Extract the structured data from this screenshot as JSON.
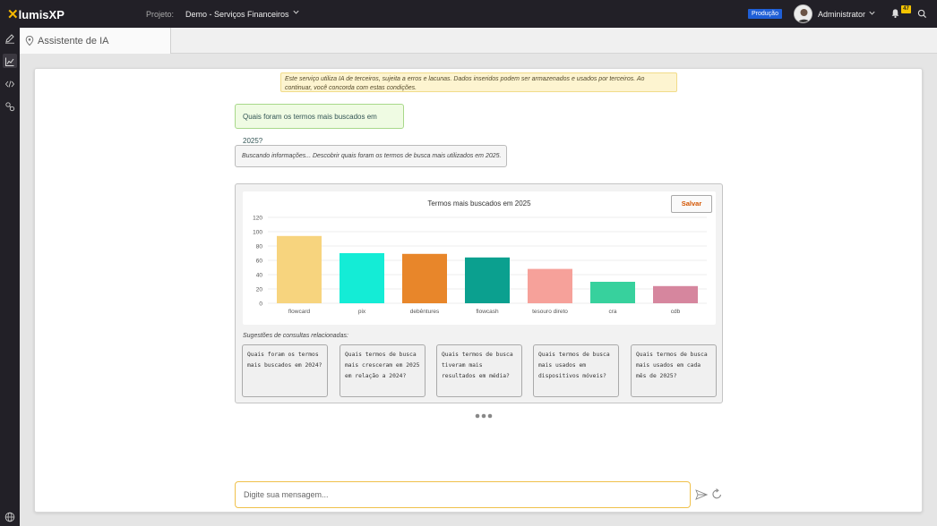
{
  "app": {
    "logo_text": "lumisXP",
    "project_label": "Projeto:",
    "project_name": "Demo - Serviços Financeiros",
    "environment": "Produção",
    "user_name": "Administrator",
    "notification_count": "47"
  },
  "tab": {
    "title": "Assistente de IA"
  },
  "chat": {
    "disclaimer": "Este serviço utiliza IA de terceiros, sujeita a erros e lacunas. Dados inseridos podem ser armazenados e usados por terceiros. Ao continuar, você concorda com estas condições.",
    "user_message": "Quais foram os termos mais buscados em 2025?",
    "status_message": "Buscando informações... Descobrir quais foram os termos de busca mais utilizados em 2025.",
    "save_label": "Salvar",
    "suggestions_title": "Sugestões de consultas relacionadas:",
    "suggestions": [
      "Quais foram os termos mais buscados em 2024?",
      "Quais termos de busca mais cresceram em 2025 em relação a 2024?",
      "Quais termos de busca tiveram mais resultados em média?",
      "Quais termos de busca mais usados em dispositivos móveis?",
      "Quais termos de busca mais usados em cada mês de 2025?"
    ],
    "input_placeholder": "Digite sua mensagem..."
  },
  "chart_data": {
    "type": "bar",
    "title": "Termos mais buscados em 2025",
    "categories": [
      "flowcard",
      "pix",
      "debêntures",
      "flowcash",
      "tesouro direto",
      "cra",
      "cdb"
    ],
    "values": [
      94,
      70,
      69,
      64,
      48,
      30,
      24
    ],
    "colors": [
      "#f7d47e",
      "#14ecd6",
      "#e8862a",
      "#0ba08f",
      "#f6a19a",
      "#37d19d",
      "#d6869e"
    ],
    "ylim": [
      0,
      120
    ],
    "yticks": [
      0,
      20,
      40,
      60,
      80,
      100,
      120
    ],
    "grid": true,
    "legend": "none"
  }
}
